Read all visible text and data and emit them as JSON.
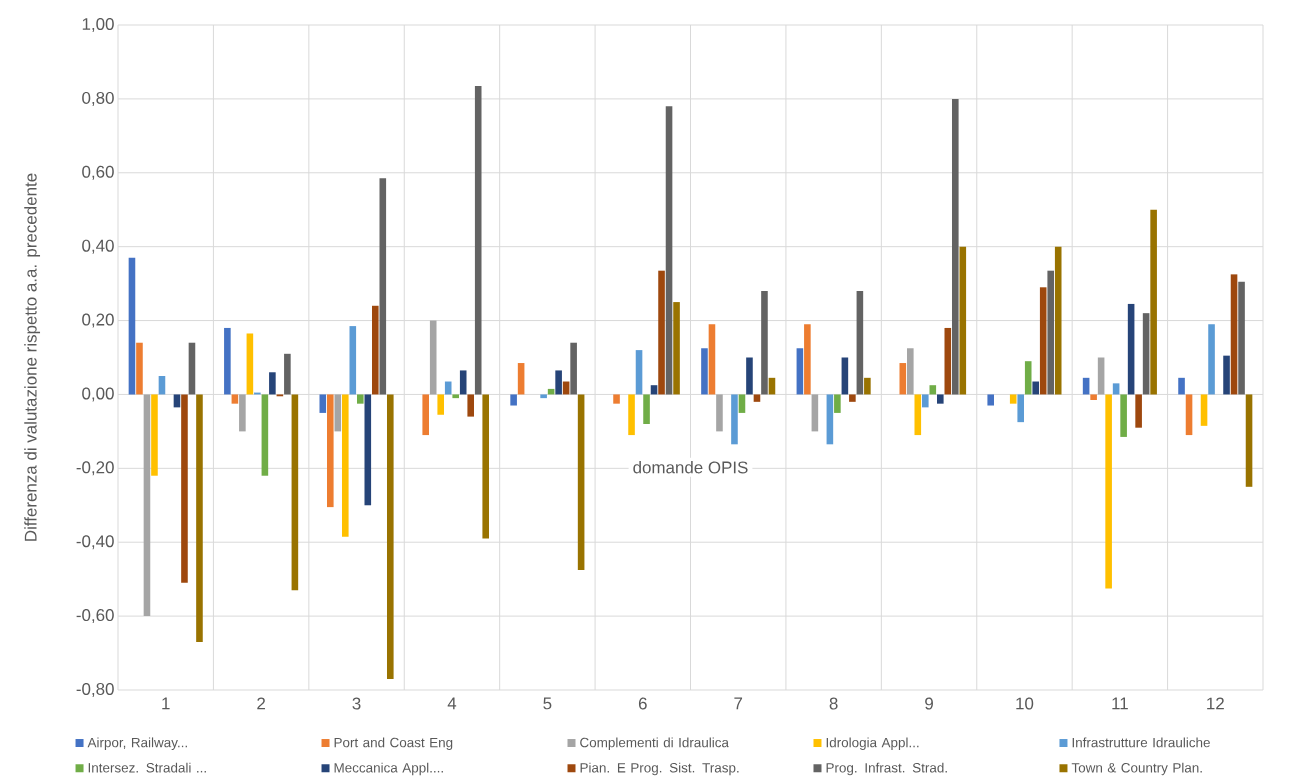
{
  "chart_data": {
    "type": "bar",
    "xlabel": "domande OPIS",
    "ylabel": "Differenza di valutazione rispetto a.a. precedente",
    "categories": [
      "1",
      "2",
      "3",
      "4",
      "5",
      "6",
      "7",
      "8",
      "9",
      "10",
      "11",
      "12"
    ],
    "series": [
      {
        "name": "Airpor, Railway...",
        "color": "#4472c4",
        "values": [
          0.37,
          0.18,
          -0.05,
          0,
          -0.03,
          0,
          0.125,
          0.125,
          0,
          -0.03,
          0.045,
          0.045
        ]
      },
      {
        "name": "Port and Coast Eng",
        "color": "#ed7d31",
        "values": [
          0.14,
          -0.025,
          -0.305,
          -0.11,
          0.085,
          -0.025,
          0.19,
          0.19,
          0.085,
          0,
          -0.015,
          -0.11
        ]
      },
      {
        "name": "Complementi di Idraulica",
        "color": "#a5a5a5",
        "values": [
          -0.6,
          -0.1,
          -0.1,
          0.2,
          0,
          0,
          -0.1,
          -0.1,
          0.125,
          0,
          0.1,
          0
        ]
      },
      {
        "name": "Idrologia Appl...",
        "color": "#ffc000",
        "values": [
          -0.22,
          0.165,
          -0.385,
          -0.055,
          0,
          -0.11,
          0,
          0,
          -0.11,
          -0.025,
          -0.525,
          -0.085
        ]
      },
      {
        "name": "Infrastrutture Idrauliche",
        "color": "#5b9bd5",
        "values": [
          0.05,
          0.005,
          0.185,
          0.035,
          -0.01,
          0.12,
          -0.135,
          -0.135,
          -0.035,
          -0.075,
          0.03,
          0.19
        ]
      },
      {
        "name": "Intersez. Stradali ...",
        "color": "#70ad47",
        "values": [
          0,
          -0.22,
          -0.025,
          -0.01,
          0.015,
          -0.08,
          -0.05,
          -0.05,
          0.025,
          0.09,
          -0.115,
          0
        ]
      },
      {
        "name": "Meccanica Appl....",
        "color": "#264478",
        "values": [
          -0.035,
          0.06,
          -0.3,
          0.065,
          0.065,
          0.025,
          0.1,
          0.1,
          -0.025,
          0.035,
          0.245,
          0.105
        ]
      },
      {
        "name": "Pian. E Prog. Sist. Trasp.",
        "color": "#9e480e",
        "values": [
          -0.51,
          -0.005,
          0.24,
          -0.06,
          0.035,
          0.335,
          -0.02,
          -0.02,
          0.18,
          0.29,
          -0.09,
          0.325
        ]
      },
      {
        "name": "Prog. Infrast. Strad.",
        "color": "#636363",
        "values": [
          0.14,
          0.11,
          0.585,
          0.835,
          0.14,
          0.78,
          0.28,
          0.28,
          0.8,
          0.335,
          0.22,
          0.305
        ]
      },
      {
        "name": "Town  & Country Plan.",
        "color": "#997300",
        "values": [
          -0.67,
          -0.53,
          -0.77,
          -0.39,
          -0.475,
          0.25,
          0.045,
          0.045,
          0.4,
          0.4,
          0.5,
          -0.25
        ]
      }
    ],
    "ylim": [
      -0.8,
      1.0
    ],
    "yticks": [
      {
        "value": -0.8,
        "label": "-0,80"
      },
      {
        "value": -0.6,
        "label": "-0,60"
      },
      {
        "value": -0.4,
        "label": "-0,40"
      },
      {
        "value": -0.2,
        "label": "-0,20"
      },
      {
        "value": 0,
        "label": "0,00"
      },
      {
        "value": 0.2,
        "label": "0,20"
      },
      {
        "value": 0.4,
        "label": "0,40"
      },
      {
        "value": 0.6,
        "label": "0,60"
      },
      {
        "value": 0.8,
        "label": "0,80"
      },
      {
        "value": 1.0,
        "label": "1,00"
      }
    ],
    "grid": true,
    "legend": "bottom"
  }
}
